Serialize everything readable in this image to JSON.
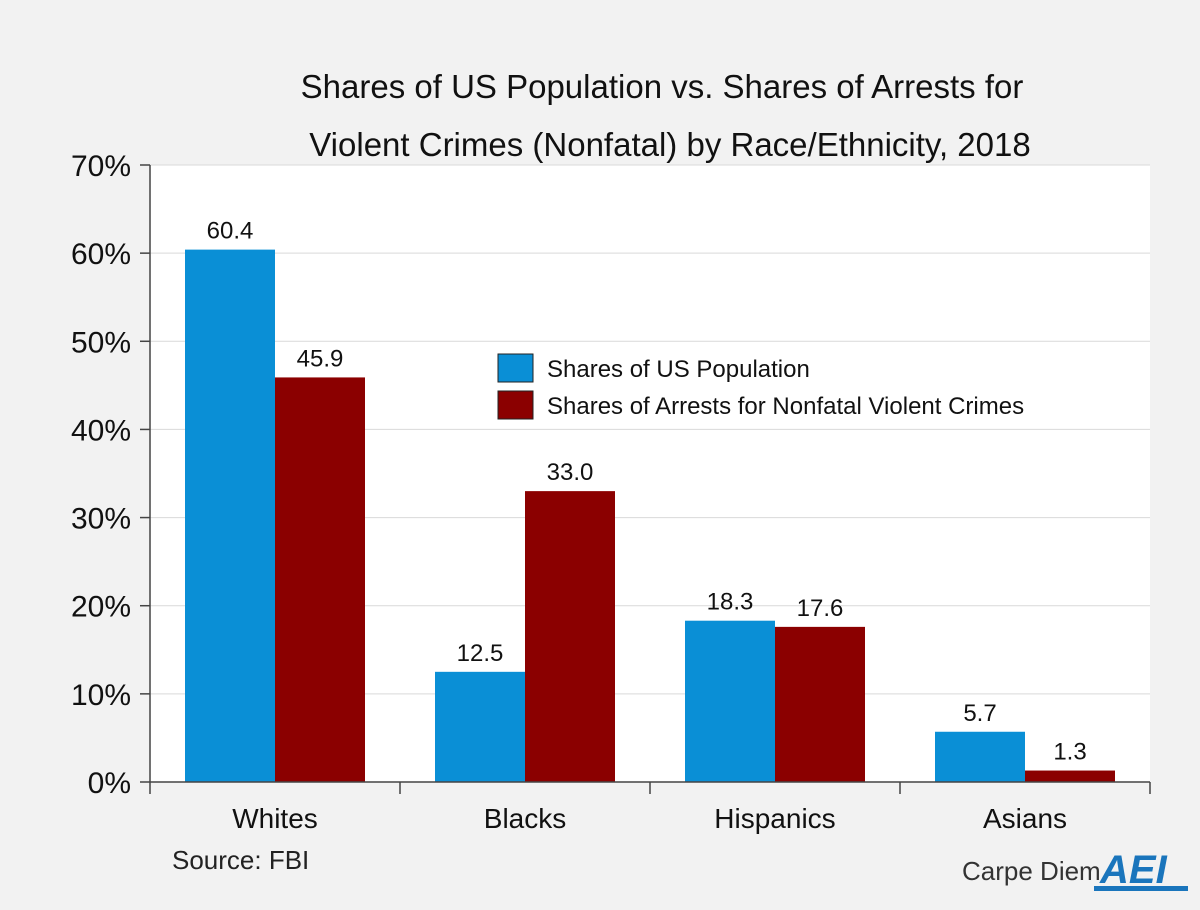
{
  "chart_data": {
    "type": "bar",
    "title_lines": [
      "Shares of US Population vs. Shares of Arrests for",
      "Violent Crimes (Nonfatal) by Race/Ethnicity, 2018"
    ],
    "categories": [
      "Whites",
      "Blacks",
      "Hispanics",
      "Asians"
    ],
    "series": [
      {
        "name": "Shares of US Population",
        "values": [
          60.4,
          12.5,
          18.3,
          5.7
        ],
        "labels": [
          "60.4",
          "12.5",
          "18.3",
          "5.7"
        ],
        "color": "#0a8fd6"
      },
      {
        "name": "Shares of Arrests for Nonfatal Violent Crimes",
        "values": [
          45.9,
          33.0,
          17.6,
          1.3
        ],
        "labels": [
          "45.9",
          "33.0",
          "17.6",
          "1.3"
        ],
        "color": "#8b0000"
      }
    ],
    "ylim": [
      0,
      70
    ],
    "yticks": [
      0,
      10,
      20,
      30,
      40,
      50,
      60,
      70
    ],
    "ytick_labels": [
      "0%",
      "10%",
      "20%",
      "30%",
      "40%",
      "50%",
      "60%",
      "70%"
    ],
    "xlabel": "",
    "ylabel": "",
    "grid": true,
    "legend_position": "center-right",
    "source": "Source: FBI"
  },
  "branding": {
    "text": "Carpe Diem",
    "logo_text": "AEI",
    "logo_color": "#1a75bc"
  }
}
